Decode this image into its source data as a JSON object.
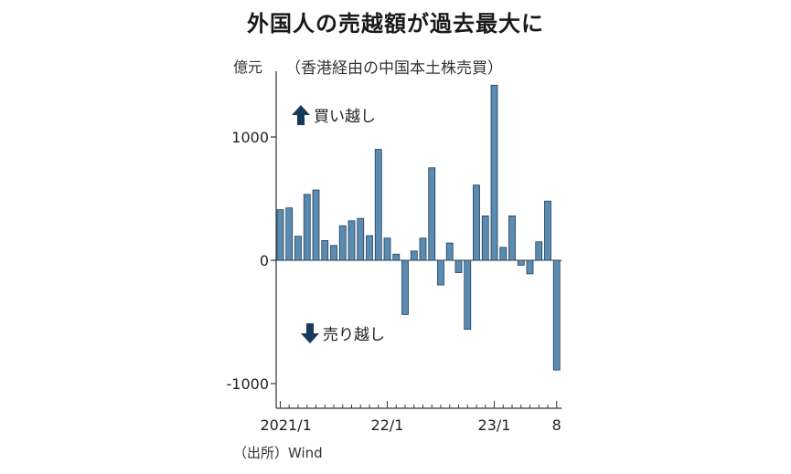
{
  "title": "外国人の売越額が過去最大に",
  "subtitle": "（香港経由の中国本土株売買）",
  "unit": "億元",
  "source": "（出所）Wind",
  "annotations": {
    "buy_label": "買い越し",
    "sell_label": "売り越し"
  },
  "colors": {
    "bar_fill": "#5b8bb0",
    "bar_stroke": "#1f3d57",
    "arrow": "#16395c",
    "axis": "#333333"
  },
  "chart_data": {
    "type": "bar",
    "title": "外国人の売越額が過去最大に",
    "subtitle": "（香港経由の中国本土株売買）",
    "ylabel": "億元",
    "xlabel": "",
    "ylim": [
      -1100,
      1450
    ],
    "yticks": [
      1000,
      0,
      -1000
    ],
    "ytick_labels": [
      "1000",
      "0",
      "-1000"
    ],
    "xtick_labels": [
      {
        "index": 0,
        "label": "2021/1"
      },
      {
        "index": 12,
        "label": "22/1"
      },
      {
        "index": 24,
        "label": "23/1"
      },
      {
        "index": 31,
        "label": "8"
      }
    ],
    "categories": [
      "2021/1",
      "2021/2",
      "2021/3",
      "2021/4",
      "2021/5",
      "2021/6",
      "2021/7",
      "2021/8",
      "2021/9",
      "2021/10",
      "2021/11",
      "2021/12",
      "2022/1",
      "2022/2",
      "2022/3",
      "2022/4",
      "2022/5",
      "2022/6",
      "2022/7",
      "2022/8",
      "2022/9",
      "2022/10",
      "2022/11",
      "2022/12",
      "2023/1",
      "2023/2",
      "2023/3",
      "2023/4",
      "2023/5",
      "2023/6",
      "2023/7",
      "2023/8"
    ],
    "values": [
      410,
      425,
      195,
      535,
      570,
      160,
      120,
      280,
      320,
      340,
      200,
      900,
      180,
      50,
      -440,
      75,
      180,
      750,
      -200,
      140,
      -100,
      -560,
      610,
      360,
      1420,
      105,
      360,
      -40,
      -110,
      150,
      480,
      -890
    ],
    "grid": false,
    "legend": "none"
  }
}
